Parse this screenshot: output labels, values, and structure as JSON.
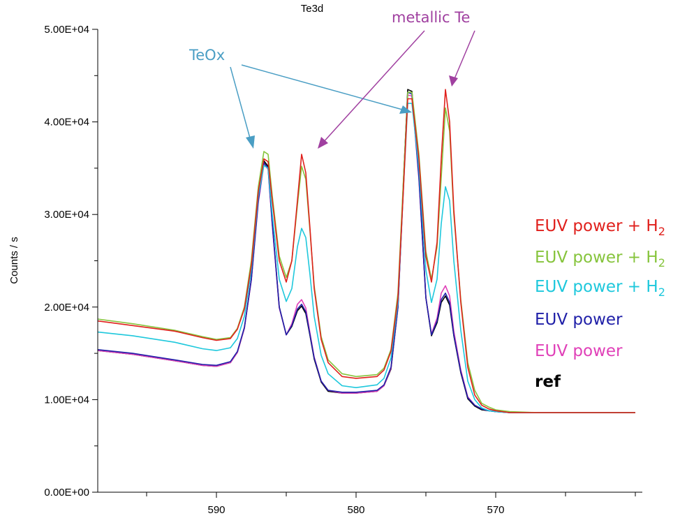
{
  "chart_data": {
    "type": "line",
    "title": "Te3d",
    "xlabel": "",
    "ylabel": "Counts / s",
    "xlim": [
      598.5,
      559.5
    ],
    "ylim": [
      0,
      50000
    ],
    "xticks": [
      590,
      580,
      570
    ],
    "yticks": [
      0,
      10000,
      20000,
      30000,
      40000,
      50000
    ],
    "ytick_labels": [
      "0.00E+00",
      "1.00E+04",
      "2.00E+04",
      "3.00E+04",
      "4.00E+04",
      "5.00E+04"
    ],
    "grid": false,
    "legend_position": "right",
    "series": [
      {
        "name": "EUV power + H2",
        "legend_label": "EUV power + H",
        "legend_sub": "2",
        "color": "#e0201c",
        "x": [
          598.5,
          596,
          593,
          591,
          590,
          589,
          588.5,
          588,
          587.5,
          587,
          586.6,
          586.3,
          586,
          585.5,
          585,
          584.6,
          584.2,
          583.9,
          583.6,
          583.3,
          583,
          582.5,
          582,
          581,
          580,
          578.5,
          578,
          577.5,
          577,
          576.6,
          576.3,
          576,
          575.5,
          575,
          574.6,
          574.2,
          573.9,
          573.6,
          573.3,
          573,
          572.5,
          572,
          571.5,
          571,
          570.5,
          570,
          569,
          567,
          564,
          560
        ],
        "y": [
          18500,
          18000,
          17400,
          16700,
          16400,
          16600,
          17600,
          19800,
          24500,
          32500,
          36000,
          35700,
          31500,
          25000,
          22700,
          25000,
          31500,
          36500,
          34500,
          28500,
          22000,
          16500,
          14000,
          12500,
          12300,
          12500,
          13200,
          15200,
          21000,
          33000,
          42500,
          42500,
          36000,
          25500,
          22700,
          27000,
          36000,
          43500,
          40000,
          30500,
          20500,
          13500,
          10500,
          9400,
          9000,
          8800,
          8600,
          8600,
          8600,
          8600
        ]
      },
      {
        "name": "EUV power + H2",
        "legend_label": "EUV power + H",
        "legend_sub": "2",
        "color": "#86c43c",
        "x": [
          598.5,
          596,
          593,
          591,
          590,
          589,
          588.5,
          588,
          587.5,
          587,
          586.6,
          586.3,
          586,
          585.5,
          585,
          584.6,
          584.2,
          583.9,
          583.6,
          583.3,
          583,
          582.5,
          582,
          581,
          580,
          578.5,
          578,
          577.5,
          577,
          576.6,
          576.3,
          576,
          575.5,
          575,
          574.6,
          574.2,
          573.9,
          573.6,
          573.3,
          573,
          572.5,
          572,
          571.5,
          571,
          570.5,
          570,
          569,
          567,
          564,
          560
        ],
        "y": [
          18700,
          18200,
          17500,
          16800,
          16500,
          16700,
          17700,
          20000,
          25000,
          33000,
          36800,
          36500,
          32000,
          25500,
          23200,
          25000,
          31000,
          35200,
          33800,
          28200,
          22300,
          16800,
          14300,
          12800,
          12500,
          12700,
          13400,
          15400,
          21500,
          34000,
          43200,
          43200,
          36500,
          26000,
          23000,
          26500,
          34000,
          41500,
          39000,
          30000,
          20800,
          14000,
          11000,
          9600,
          9200,
          8900,
          8700,
          8600,
          8600,
          8600
        ]
      },
      {
        "name": "EUV power + H2",
        "legend_label": "EUV power + H",
        "legend_sub": "2",
        "color": "#1ec8dc",
        "x": [
          598.5,
          596,
          593,
          591,
          590,
          589,
          588.5,
          588,
          587.5,
          587,
          586.6,
          586.3,
          586,
          585.5,
          585,
          584.6,
          584.2,
          583.9,
          583.6,
          583.3,
          583,
          582.5,
          582,
          581,
          580,
          578.5,
          578,
          577.5,
          577,
          576.6,
          576.3,
          576,
          575.5,
          575,
          574.6,
          574.2,
          573.9,
          573.6,
          573.3,
          573,
          572.5,
          572,
          571.5,
          571,
          570.5,
          570,
          569,
          567,
          564,
          560
        ],
        "y": [
          17300,
          16900,
          16200,
          15500,
          15300,
          15600,
          16600,
          19000,
          24000,
          32000,
          35300,
          35000,
          30000,
          23000,
          20600,
          22000,
          26500,
          28500,
          27500,
          23500,
          19000,
          14800,
          12800,
          11500,
          11300,
          11600,
          12300,
          14500,
          20500,
          33000,
          42000,
          42000,
          35000,
          24000,
          20500,
          23000,
          29000,
          33000,
          31500,
          25000,
          17500,
          12000,
          10000,
          9100,
          8800,
          8700,
          8600,
          8600,
          8600,
          8600
        ]
      },
      {
        "name": "EUV power",
        "legend_label": "EUV power",
        "legend_sub": "",
        "color": "#1f1fa8",
        "x": [
          598.5,
          596,
          593,
          591,
          590,
          589,
          588.5,
          588,
          587.5,
          587,
          586.6,
          586.3,
          586,
          585.5,
          585,
          584.6,
          584.2,
          583.9,
          583.6,
          583.3,
          583,
          582.5,
          582,
          581,
          580,
          578.5,
          578,
          577.5,
          577,
          576.6,
          576.3,
          576,
          575.5,
          575,
          574.6,
          574.2,
          573.9,
          573.6,
          573.3,
          573,
          572.5,
          572,
          571.5,
          571,
          570.5,
          570,
          569,
          567,
          564,
          560
        ],
        "y": [
          15400,
          15000,
          14300,
          13800,
          13700,
          14100,
          15200,
          17800,
          23000,
          31500,
          35600,
          35000,
          29000,
          20000,
          17000,
          18000,
          19800,
          20300,
          19500,
          17000,
          14500,
          12000,
          11000,
          10800,
          10800,
          11000,
          11600,
          13500,
          20000,
          33500,
          43200,
          43000,
          34000,
          21000,
          17000,
          18500,
          20800,
          21500,
          20500,
          17000,
          13000,
          10200,
          9400,
          9000,
          8800,
          8700,
          8600,
          8600,
          8600,
          8600
        ]
      },
      {
        "name": "EUV power",
        "legend_label": "EUV power",
        "legend_sub": "",
        "color": "#e040b8",
        "x": [
          598.5,
          596,
          593,
          591,
          590,
          589,
          588.5,
          588,
          587.5,
          587,
          586.6,
          586.3,
          586,
          585.5,
          585,
          584.6,
          584.2,
          583.9,
          583.6,
          583.3,
          583,
          582.5,
          582,
          581,
          580,
          578.5,
          578,
          577.5,
          577,
          576.6,
          576.3,
          576,
          575.5,
          575,
          574.6,
          574.2,
          573.9,
          573.6,
          573.3,
          573,
          572.5,
          572,
          571.5,
          571,
          570.5,
          570,
          569,
          567,
          564,
          560
        ],
        "y": [
          15300,
          14900,
          14200,
          13700,
          13600,
          14000,
          15100,
          17700,
          22900,
          31300,
          35400,
          34900,
          28800,
          19900,
          17000,
          18200,
          20300,
          20800,
          19900,
          17200,
          14600,
          12000,
          11000,
          10700,
          10700,
          10900,
          11500,
          13400,
          19900,
          33200,
          42900,
          42800,
          33800,
          21000,
          17100,
          18800,
          21500,
          22300,
          21200,
          17400,
          13200,
          10300,
          9400,
          9000,
          8800,
          8700,
          8600,
          8600,
          8600,
          8600
        ]
      },
      {
        "name": "ref",
        "legend_label": "ref",
        "legend_sub": "",
        "color": "#000000",
        "x": [
          598.5,
          596,
          593,
          591,
          590,
          589,
          588.5,
          588,
          587.5,
          587,
          586.6,
          586.3,
          586,
          585.5,
          585,
          584.6,
          584.2,
          583.9,
          583.6,
          583.3,
          583,
          582.5,
          582,
          581,
          580,
          578.5,
          578,
          577.5,
          577,
          576.6,
          576.3,
          576,
          575.5,
          575,
          574.6,
          574.2,
          573.9,
          573.6,
          573.3,
          573,
          572.5,
          572,
          571.5,
          571,
          570.5,
          570,
          569,
          567,
          564,
          560
        ],
        "y": [
          15300,
          14900,
          14200,
          13700,
          13600,
          14000,
          15100,
          17700,
          23000,
          31700,
          35800,
          35200,
          29000,
          20000,
          17000,
          17900,
          19600,
          20100,
          19300,
          16900,
          14400,
          11900,
          10900,
          10700,
          10700,
          10900,
          11500,
          13300,
          20000,
          33800,
          43500,
          43300,
          34200,
          21000,
          16900,
          18300,
          20500,
          21200,
          20200,
          16900,
          12900,
          10100,
          9300,
          8900,
          8800,
          8700,
          8600,
          8600,
          8600,
          8600
        ]
      }
    ],
    "annotations": [
      {
        "text": "TeOx",
        "color": "#4a9ec4"
      },
      {
        "text": "metallic Te",
        "color": "#a040a0"
      }
    ]
  }
}
